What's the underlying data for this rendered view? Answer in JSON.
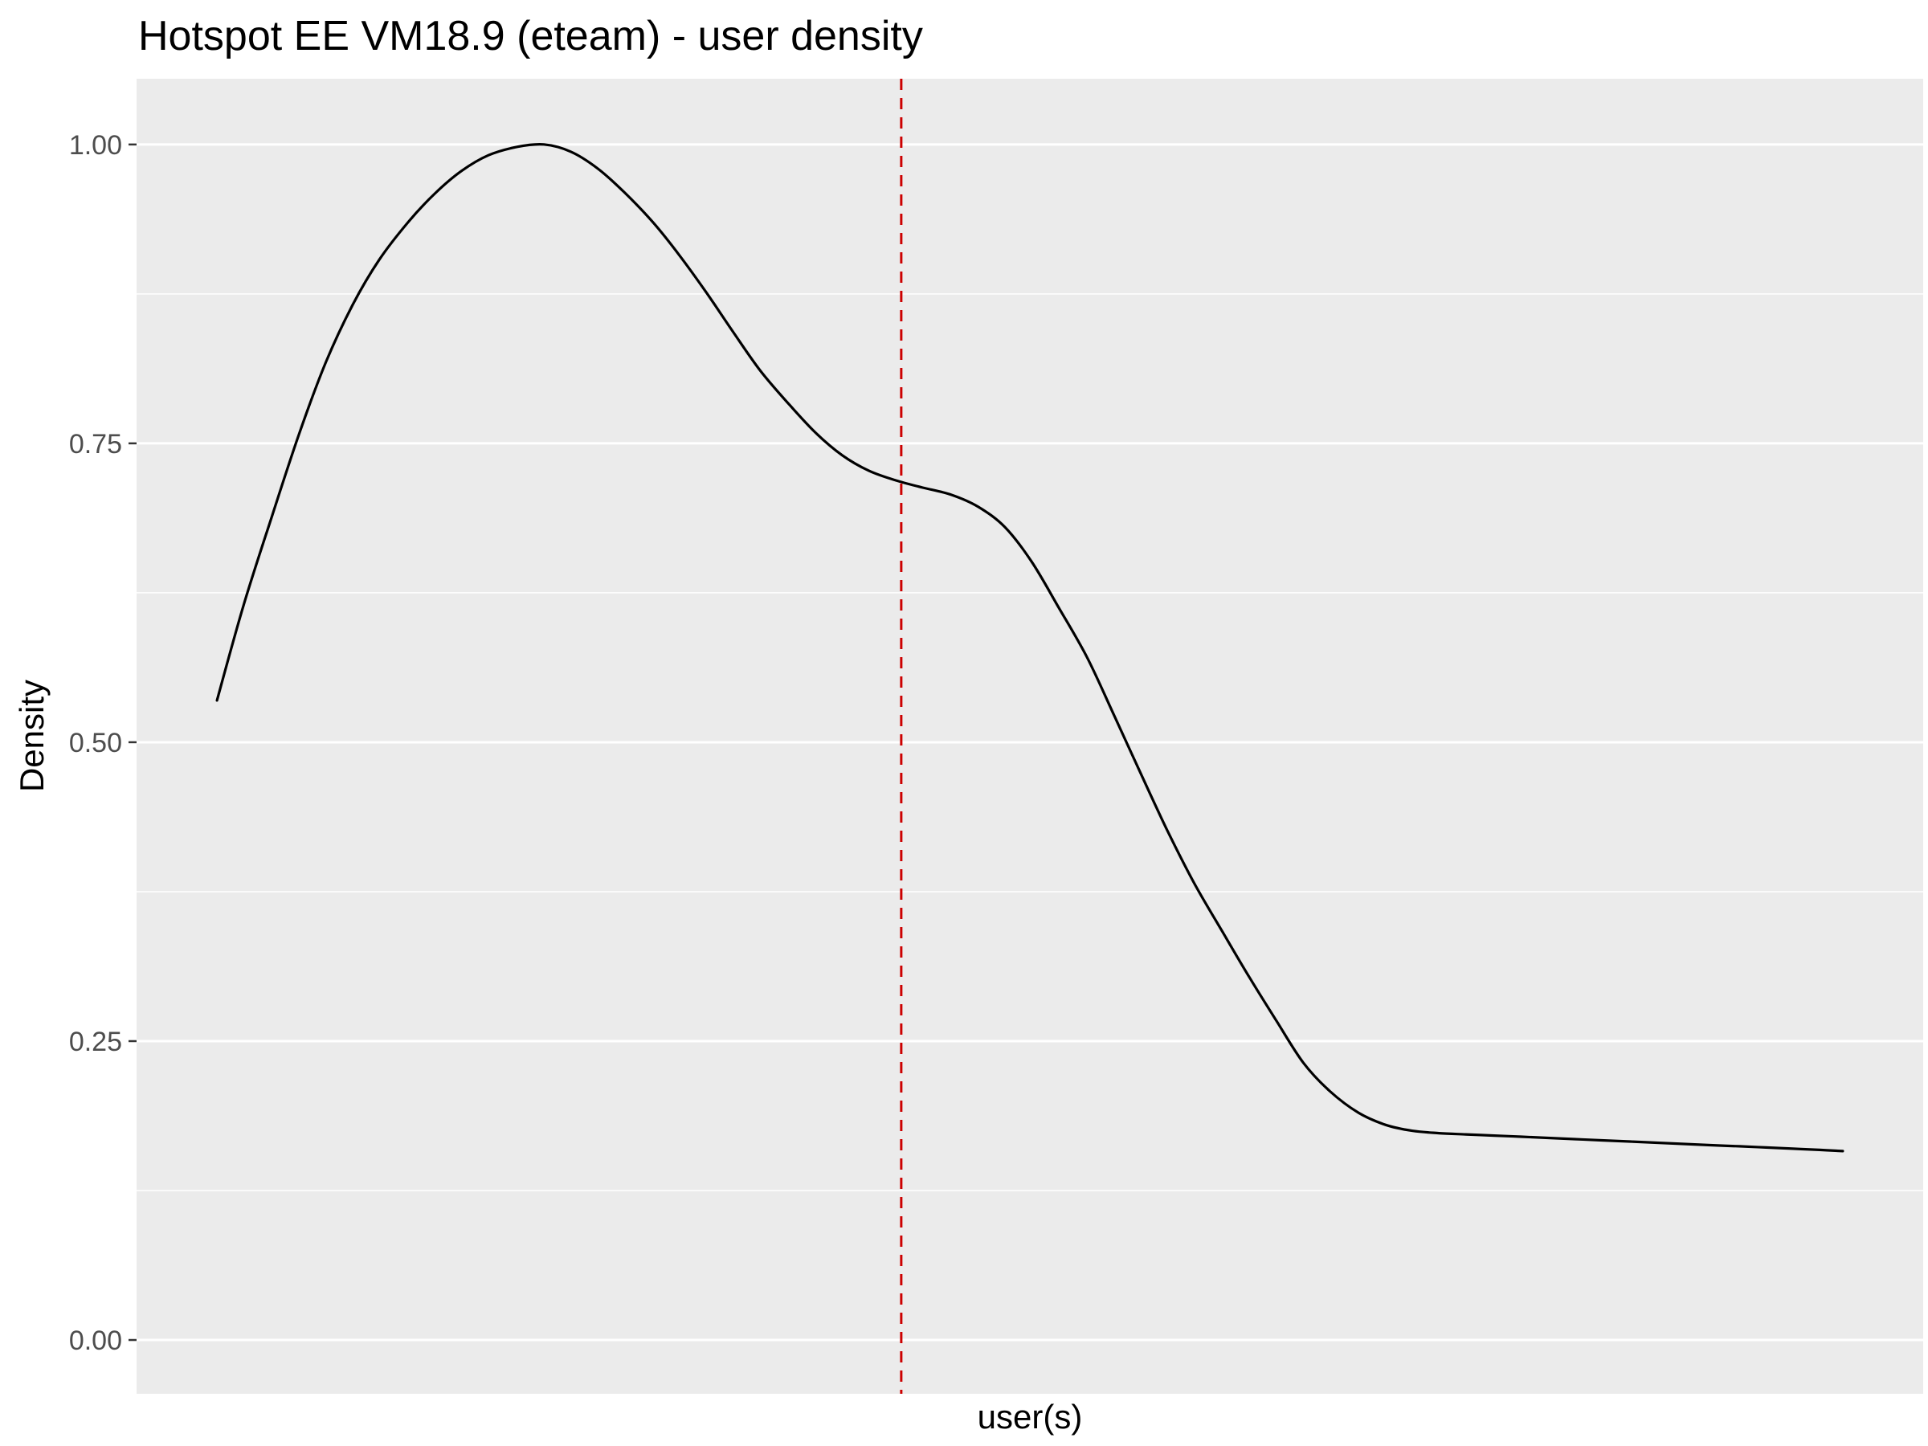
{
  "chart_data": {
    "type": "line",
    "title": "Hotspot EE VM18.9 (eteam) - user density",
    "xlabel": "user(s)",
    "ylabel": "Density",
    "ylim": [
      -0.045,
      1.055
    ],
    "xlim": [
      0,
      1
    ],
    "y_ticks": [
      {
        "value": 0.0,
        "label": "0.00"
      },
      {
        "value": 0.25,
        "label": "0.25"
      },
      {
        "value": 0.5,
        "label": "0.50"
      },
      {
        "value": 0.75,
        "label": "0.75"
      },
      {
        "value": 1.0,
        "label": "1.00"
      }
    ],
    "y_minor_gridlines": [
      0.125,
      0.375,
      0.625,
      0.875
    ],
    "x_ticks": [],
    "grid": true,
    "panel_background": "#ebebeb",
    "gridline_color": "#ffffff",
    "series": [
      {
        "line_color": "#000000",
        "x": [
          0.045,
          0.06,
          0.076,
          0.091,
          0.106,
          0.121,
          0.136,
          0.152,
          0.167,
          0.182,
          0.197,
          0.213,
          0.228,
          0.243,
          0.258,
          0.273,
          0.289,
          0.304,
          0.319,
          0.334,
          0.349,
          0.365,
          0.38,
          0.395,
          0.41,
          0.425,
          0.44,
          0.456,
          0.471,
          0.486,
          0.501,
          0.516,
          0.532,
          0.547,
          0.562,
          0.577,
          0.592,
          0.608,
          0.623,
          0.638,
          0.653,
          0.668,
          0.684,
          0.699,
          0.714,
          0.729,
          0.744,
          0.76,
          0.775,
          0.79,
          0.805,
          0.82,
          0.836,
          0.851,
          0.866,
          0.881,
          0.897,
          0.912,
          0.927,
          0.942,
          0.955
        ],
        "y": [
          0.535,
          0.615,
          0.69,
          0.758,
          0.818,
          0.866,
          0.904,
          0.935,
          0.959,
          0.978,
          0.991,
          0.998,
          1.0,
          0.994,
          0.98,
          0.96,
          0.935,
          0.907,
          0.876,
          0.843,
          0.811,
          0.783,
          0.759,
          0.74,
          0.727,
          0.719,
          0.713,
          0.707,
          0.697,
          0.68,
          0.651,
          0.613,
          0.571,
          0.523,
          0.474,
          0.426,
          0.382,
          0.341,
          0.303,
          0.267,
          0.232,
          0.208,
          0.19,
          0.18,
          0.175,
          0.173,
          0.172,
          0.171,
          0.17,
          0.169,
          0.168,
          0.167,
          0.166,
          0.165,
          0.164,
          0.163,
          0.162,
          0.161,
          0.16,
          0.159,
          0.158
        ]
      }
    ],
    "reference_line": {
      "orientation": "vertical",
      "x": 0.428,
      "color": "#cc0000",
      "style": "dashed"
    }
  }
}
